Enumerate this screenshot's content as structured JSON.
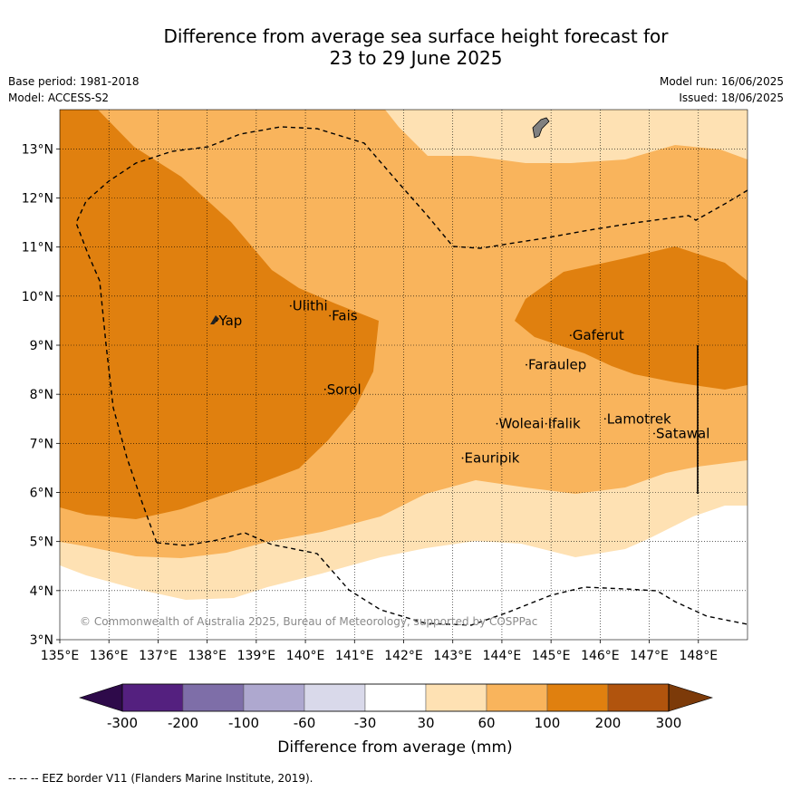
{
  "title_line1": "Difference from average sea surface height forecast for",
  "title_line2": "23 to 29 June 2025",
  "meta_left": [
    "Base period: 1981-2018",
    "Model: ACCESS-S2"
  ],
  "meta_right": [
    "Model run: 16/06/2025",
    "Issued: 18/06/2025"
  ],
  "map": {
    "lon_range": [
      135,
      149
    ],
    "lat_range": [
      3,
      13.8
    ],
    "x_ticks": [
      "135°E",
      "136°E",
      "137°E",
      "138°E",
      "139°E",
      "140°E",
      "141°E",
      "142°E",
      "143°E",
      "144°E",
      "145°E",
      "146°E",
      "147°E",
      "148°E"
    ],
    "y_ticks": [
      "3°N",
      "4°N",
      "5°N",
      "6°N",
      "7°N",
      "8°N",
      "9°N",
      "10°N",
      "11°N",
      "12°N",
      "13°N"
    ],
    "places": [
      {
        "name": "Yap",
        "lon": 138.2,
        "lat": 9.5
      },
      {
        "name": "Ulithi",
        "lon": 139.7,
        "lat": 9.8
      },
      {
        "name": "Fais",
        "lon": 140.5,
        "lat": 9.6
      },
      {
        "name": "Sorol",
        "lon": 140.4,
        "lat": 8.1
      },
      {
        "name": "Gaferut",
        "lon": 145.4,
        "lat": 9.2
      },
      {
        "name": "Faraulep",
        "lon": 144.5,
        "lat": 8.6
      },
      {
        "name": "Woleai",
        "lon": 143.9,
        "lat": 7.4
      },
      {
        "name": "Ifalik",
        "lon": 144.9,
        "lat": 7.4
      },
      {
        "name": "Lamotrek",
        "lon": 146.1,
        "lat": 7.5
      },
      {
        "name": "Satawal",
        "lon": 147.1,
        "lat": 7.2
      },
      {
        "name": "Eauripik",
        "lon": 143.2,
        "lat": 6.7
      }
    ],
    "copyright": "© Commonwealth of Australia 2025, Bureau of Meteorology, supported by COSPPac"
  },
  "legend": {
    "labels": [
      "-300",
      "-200",
      "-100",
      "-60",
      "-30",
      "30",
      "60",
      "100",
      "200",
      "300"
    ],
    "colors": [
      "#54207f",
      "#7e6ea8",
      "#aea8cf",
      "#d9d9ea",
      "#ffffff",
      "#fee1b3",
      "#f9b45c",
      "#e0800f",
      "#b1540d"
    ],
    "under_color": "#2e0a4a",
    "over_color": "#7c3a09",
    "title": "Difference from average (mm)"
  },
  "footnote": "--  --  -- EEZ border V11 (Flanders Marine Institute, 2019)."
}
